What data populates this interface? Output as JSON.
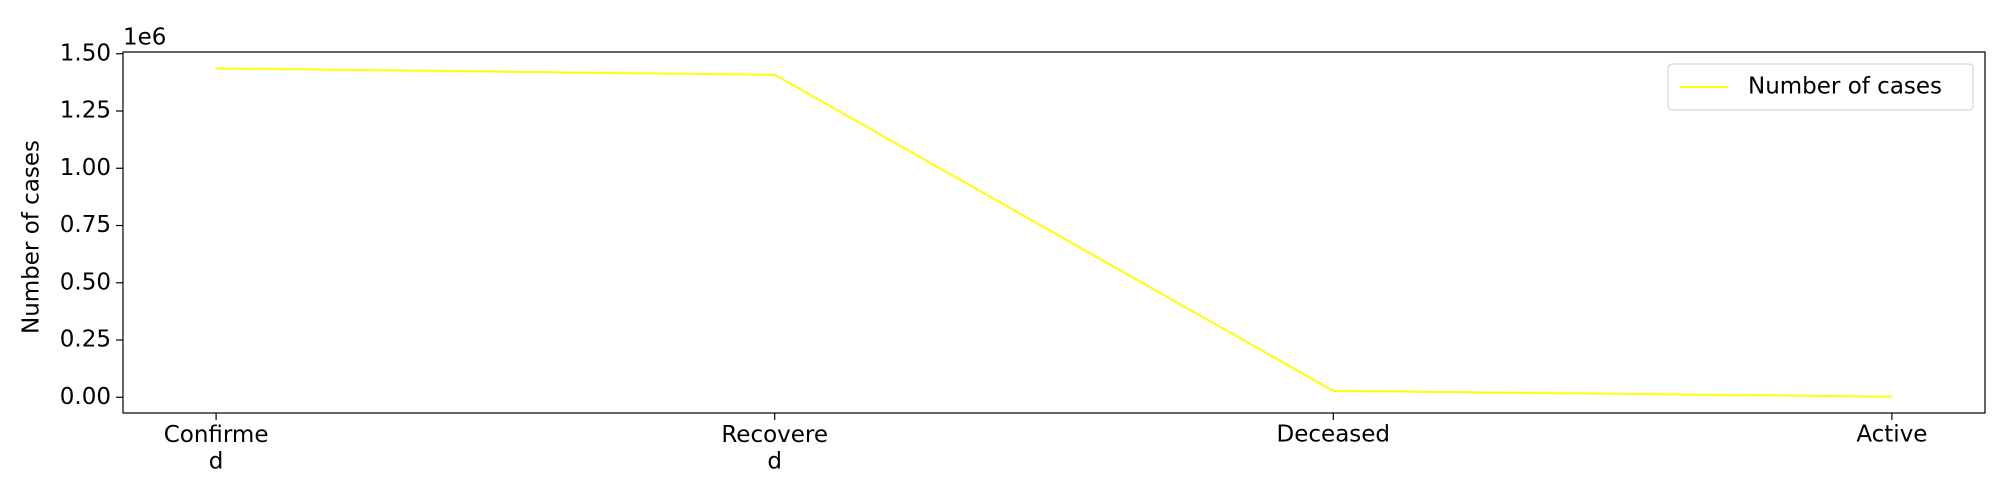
{
  "chart_data": {
    "type": "line",
    "ylabel": "Number of cases",
    "y_offset_label": "1e6",
    "categories": [
      "Confirme\nd",
      "Recovere\nd",
      "Deceased",
      "Active"
    ],
    "series": [
      {
        "name": "Number of cases",
        "color": "#ffff00",
        "values": [
          1436000,
          1408000,
          28000,
          3000
        ]
      }
    ],
    "ylim": [
      -68650,
      1507650
    ],
    "yticks": [
      {
        "value": 0,
        "label": "0.00"
      },
      {
        "value": 250000,
        "label": "0.25"
      },
      {
        "value": 500000,
        "label": "0.50"
      },
      {
        "value": 750000,
        "label": "0.75"
      },
      {
        "value": 1000000,
        "label": "1.00"
      },
      {
        "value": 1250000,
        "label": "1.25"
      },
      {
        "value": 1500000,
        "label": "1.50"
      }
    ],
    "legend": "upper right",
    "grid": false
  }
}
